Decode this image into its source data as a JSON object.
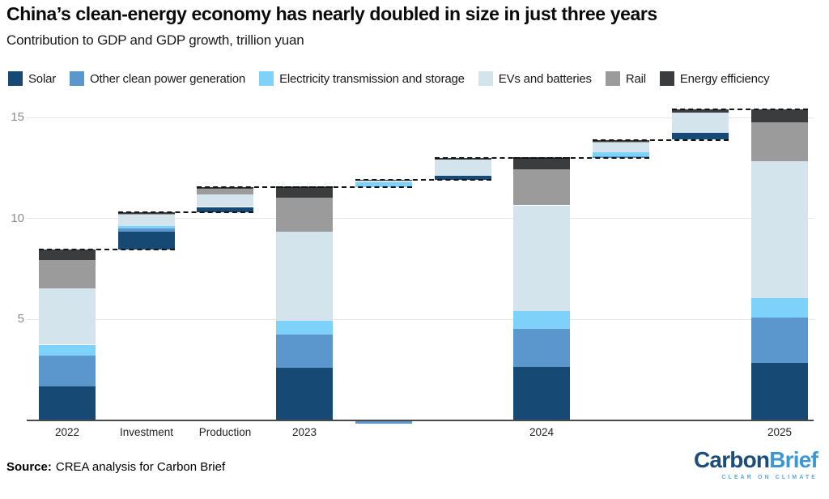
{
  "title": "China’s clean-energy economy has nearly doubled in size in just three years",
  "subtitle": "Contribution to GDP and GDP growth, trillion yuan",
  "legend": [
    {
      "key": "solar",
      "label": "Solar"
    },
    {
      "key": "other",
      "label": "Other clean power generation"
    },
    {
      "key": "et",
      "label": "Electricity transmission and storage"
    },
    {
      "key": "evs",
      "label": "EVs and batteries"
    },
    {
      "key": "rail",
      "label": "Rail"
    },
    {
      "key": "ee",
      "label": "Energy efficiency"
    }
  ],
  "source": {
    "prefix": "Source:",
    "text": "CREA analysis for Carbon Brief"
  },
  "logo": {
    "part1": "Carbon",
    "part2": "Brief",
    "tagline": "CLEAR ON CLIMATE"
  },
  "chart_data": {
    "type": "bar",
    "subtype": "stacked-waterfall",
    "title": "China’s clean-energy economy has nearly doubled in size in just three years",
    "unit": "trillion yuan",
    "ylim": [
      0,
      15.5
    ],
    "gridlines": [
      5,
      10,
      15
    ],
    "y_tick_labels": [
      "5",
      "10",
      "15"
    ],
    "legend_position": "top",
    "series_keys": [
      "solar",
      "other",
      "et",
      "evs",
      "rail",
      "ee"
    ],
    "series_labels": {
      "solar": "Solar",
      "other": "Other clean power generation",
      "et": "Electricity transmission and storage",
      "evs": "EVs and batteries",
      "rail": "Rail",
      "ee": "Energy efficiency"
    },
    "colors": {
      "solar": "#164a74",
      "other": "#5b96cc",
      "et": "#7ed1f8",
      "evs": "#d3e4ec",
      "rail": "#9b9b9b",
      "ee": "#3b3c3e",
      "grid": "#e4e4e4",
      "axis": "#4a4a4a",
      "connector": "#141414"
    },
    "bars": [
      {
        "label": "2022",
        "base": 0,
        "total": 8.45,
        "segments": {
          "solar": 1.7,
          "other": 1.5,
          "et": 0.55,
          "evs": 2.8,
          "rail": 1.4,
          "ee": 0.5
        }
      },
      {
        "label": "Investment",
        "base": 8.45,
        "total": 10.3,
        "segments": {
          "solar": 0.9,
          "other": 0.15,
          "et": 0.13,
          "evs": 0.57,
          "rail": 0.02,
          "ee": 0.08
        }
      },
      {
        "label": "Production",
        "base": 10.3,
        "total": 11.55,
        "segments": {
          "solar": 0.27,
          "evs": 0.63,
          "rail": 0.26,
          "ee": 0.09
        }
      },
      {
        "label": "2023",
        "base": 0,
        "total": 11.55,
        "segments": {
          "solar": 2.6,
          "other": 1.65,
          "et": 0.7,
          "evs": 4.4,
          "rail": 1.7,
          "ee": 0.5
        }
      },
      {
        "label": "",
        "base": 11.55,
        "total": 11.9,
        "segments": {
          "et": 0.25,
          "evs": 0.06,
          "ee": 0.04
        },
        "below_axis": {
          "key": "other",
          "value": -0.1
        }
      },
      {
        "label": "",
        "base": 11.9,
        "total": 13.0,
        "segments": {
          "solar": 0.22,
          "evs": 0.78,
          "ee": 0.1
        }
      },
      {
        "label": "2024",
        "base": 0,
        "total": 13.0,
        "segments": {
          "solar": 2.65,
          "other": 1.9,
          "et": 0.85,
          "evs": 5.25,
          "rail": 1.8,
          "ee": 0.55
        }
      },
      {
        "label": "",
        "base": 13.0,
        "total": 13.9,
        "segments": {
          "other": 0.08,
          "et": 0.22,
          "evs": 0.5,
          "rail": 0.02,
          "ee": 0.08
        }
      },
      {
        "label": "",
        "base": 13.9,
        "total": 15.4,
        "segments": {
          "solar": 0.35,
          "evs": 1.0,
          "ee": 0.15
        }
      },
      {
        "label": "2025",
        "base": 0,
        "total": 15.4,
        "segments": {
          "solar": 2.85,
          "other": 2.25,
          "et": 0.95,
          "evs": 6.8,
          "rail": 1.9,
          "ee": 0.65
        }
      }
    ]
  }
}
